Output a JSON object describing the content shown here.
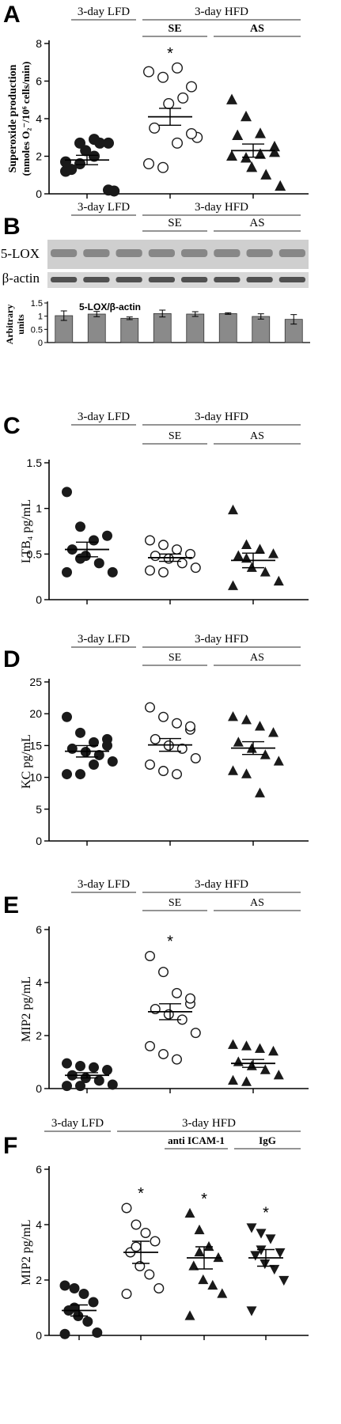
{
  "chart_data": [
    {
      "panel": "A",
      "type": "scatter",
      "ylabel_line1": "Superoxide production",
      "ylabel_line2": "(nmoles O₂⁻/10⁶ cells/min)",
      "ylim": [
        0,
        8
      ],
      "yticks": [
        "0",
        "2",
        "4",
        "6",
        "8"
      ],
      "groups_top": [
        {
          "label": "3-day LFD"
        },
        {
          "label": "3-day HFD"
        }
      ],
      "groups_sub": [
        {
          "label": "SE"
        },
        {
          "label": "AS"
        }
      ],
      "series": [
        {
          "label": "",
          "marker": "filled-circle",
          "mean": 1.8,
          "sem": 0.25,
          "values": [
            1.2,
            2.7,
            2.9,
            0.2,
            1.3,
            2.3,
            2.7,
            0.15,
            1.7,
            1.6,
            2.0,
            2.7
          ]
        },
        {
          "label": "",
          "marker": "open-circle",
          "mean": 4.1,
          "sem": 0.45,
          "values": [
            6.5,
            6.2,
            6.7,
            5.7,
            3.5,
            4.8,
            5.1,
            3.0,
            1.6,
            1.4,
            2.7,
            3.2
          ]
        },
        {
          "label": "",
          "marker": "filled-triangle",
          "mean": 2.3,
          "sem": 0.35,
          "values": [
            5.0,
            4.1,
            3.2,
            2.5,
            3.1,
            1.4,
            1.0,
            0.4,
            2.0,
            1.9,
            2.1,
            2.2
          ]
        }
      ],
      "significance": [
        "",
        "*",
        ""
      ]
    },
    {
      "panel": "B",
      "type": "bar",
      "blot_labels": [
        "5-LOX",
        "β-actin"
      ],
      "groups_top": [
        {
          "label": "3-day LFD"
        },
        {
          "label": "3-day HFD"
        }
      ],
      "groups_sub": [
        {
          "label": "SE"
        },
        {
          "label": "AS"
        }
      ],
      "title": "5-LOX/β-actin",
      "ylabel_line1": "Arbitrary",
      "ylabel_line2": "units",
      "ylim": [
        0,
        1.5
      ],
      "yticks": [
        "0",
        "0.5",
        "1",
        "1.5"
      ],
      "values": [
        1.02,
        1.08,
        0.92,
        1.1,
        1.08,
        1.1,
        0.99,
        0.88
      ],
      "errors": [
        0.18,
        0.1,
        0.05,
        0.13,
        0.09,
        0.03,
        0.1,
        0.18
      ]
    },
    {
      "panel": "C",
      "type": "scatter",
      "ylabel_line1": "LTB₄ pg/mL",
      "ylim": [
        0,
        1.5
      ],
      "yticks": [
        "0",
        "0.5",
        "1",
        "1.5"
      ],
      "groups_top": [
        {
          "label": "3-day LFD"
        },
        {
          "label": "3-day HFD"
        }
      ],
      "groups_sub": [
        {
          "label": "SE"
        },
        {
          "label": "AS"
        }
      ],
      "series": [
        {
          "label": "",
          "marker": "filled-circle",
          "mean": 0.55,
          "sem": 0.08,
          "values": [
            1.18,
            0.8,
            0.65,
            0.7,
            0.55,
            0.48,
            0.4,
            0.3,
            0.3,
            0.45
          ]
        },
        {
          "label": "",
          "marker": "open-circle",
          "mean": 0.46,
          "sem": 0.04,
          "values": [
            0.65,
            0.6,
            0.55,
            0.5,
            0.48,
            0.45,
            0.4,
            0.35,
            0.32,
            0.3
          ]
        },
        {
          "label": "",
          "marker": "filled-triangle",
          "mean": 0.43,
          "sem": 0.08,
          "values": [
            0.98,
            0.6,
            0.55,
            0.5,
            0.48,
            0.35,
            0.3,
            0.2,
            0.15,
            0.45
          ]
        }
      ],
      "significance": [
        "",
        "",
        ""
      ]
    },
    {
      "panel": "D",
      "type": "scatter",
      "ylabel_line1": "KC pg/mL",
      "ylim": [
        0,
        25
      ],
      "yticks": [
        "0",
        "5",
        "10",
        "15",
        "20",
        "25"
      ],
      "groups_top": [
        {
          "label": "3-day LFD"
        },
        {
          "label": "3-day HFD"
        }
      ],
      "groups_sub": [
        {
          "label": "SE"
        },
        {
          "label": "AS"
        }
      ],
      "series": [
        {
          "label": "",
          "marker": "filled-circle",
          "mean": 14.1,
          "sem": 0.9,
          "values": [
            19.5,
            17.0,
            15.5,
            15.0,
            14.5,
            14.0,
            13.5,
            12.5,
            10.5,
            10.5,
            12.0,
            16.0
          ]
        },
        {
          "label": "",
          "marker": "open-circle",
          "mean": 15.1,
          "sem": 1.0,
          "values": [
            21.0,
            19.5,
            18.5,
            17.5,
            16.0,
            15.0,
            14.5,
            13.0,
            12.0,
            11.0,
            10.5,
            18.0
          ]
        },
        {
          "label": "",
          "marker": "filled-triangle",
          "mean": 14.6,
          "sem": 1.0,
          "values": [
            19.5,
            19.0,
            18.0,
            17.0,
            15.5,
            14.5,
            13.5,
            12.5,
            11.0,
            10.5,
            7.5
          ]
        }
      ],
      "significance": [
        "",
        "",
        ""
      ]
    },
    {
      "panel": "E",
      "type": "scatter",
      "ylabel_line1": "MIP2 pg/mL",
      "ylim": [
        0,
        6
      ],
      "yticks": [
        "0",
        "2",
        "4",
        "6"
      ],
      "groups_top": [
        {
          "label": "3-day LFD"
        },
        {
          "label": "3-day HFD"
        }
      ],
      "groups_sub": [
        {
          "label": "SE"
        },
        {
          "label": "AS"
        }
      ],
      "series": [
        {
          "label": "",
          "marker": "filled-circle",
          "mean": 0.5,
          "sem": 0.1,
          "values": [
            0.95,
            0.85,
            0.8,
            0.7,
            0.5,
            0.4,
            0.3,
            0.15,
            0.1,
            0.1
          ]
        },
        {
          "label": "",
          "marker": "open-circle",
          "mean": 2.9,
          "sem": 0.3,
          "values": [
            5.0,
            4.4,
            3.6,
            3.2,
            3.0,
            2.8,
            2.6,
            2.1,
            1.6,
            1.3,
            1.1,
            3.4
          ]
        },
        {
          "label": "",
          "marker": "filled-triangle",
          "mean": 0.95,
          "sem": 0.15,
          "values": [
            1.65,
            1.6,
            1.5,
            1.4,
            1.0,
            0.85,
            0.7,
            0.5,
            0.3,
            0.25
          ]
        }
      ],
      "significance": [
        "",
        "*",
        ""
      ]
    },
    {
      "panel": "F",
      "type": "scatter",
      "ylabel_line1": "MIP2 pg/mL",
      "ylim": [
        0,
        6
      ],
      "yticks": [
        "0",
        "2",
        "4",
        "6"
      ],
      "groups_top": [
        {
          "label": "3-day LFD"
        },
        {
          "label": "3-day HFD"
        }
      ],
      "groups_sub": [
        {
          "label": "anti ICAM-1"
        },
        {
          "label": "IgG"
        }
      ],
      "series": [
        {
          "label": "",
          "marker": "filled-circle",
          "mean": 0.9,
          "sem": 0.2,
          "values": [
            1.8,
            1.7,
            1.5,
            1.2,
            0.9,
            0.7,
            0.5,
            0.1,
            0.05,
            1.0
          ]
        },
        {
          "label": "",
          "marker": "open-circle",
          "mean": 3.0,
          "sem": 0.4,
          "values": [
            4.6,
            4.0,
            3.7,
            3.4,
            3.0,
            2.5,
            2.2,
            1.7,
            1.5,
            3.2
          ]
        },
        {
          "label": "",
          "marker": "filled-triangle",
          "mean": 2.8,
          "sem": 0.4,
          "values": [
            4.4,
            3.8,
            3.2,
            2.8,
            2.5,
            2.0,
            1.8,
            1.5,
            0.7,
            3.0
          ]
        },
        {
          "label": "",
          "marker": "filled-down-triangle",
          "mean": 2.8,
          "sem": 0.3,
          "values": [
            3.9,
            3.7,
            3.5,
            3.0,
            2.9,
            2.6,
            2.4,
            2.0,
            0.9,
            3.1
          ]
        }
      ],
      "significance": [
        "",
        "*",
        "*",
        "*"
      ]
    }
  ],
  "panel_letters": [
    "A",
    "B",
    "C",
    "D",
    "E",
    "F"
  ]
}
